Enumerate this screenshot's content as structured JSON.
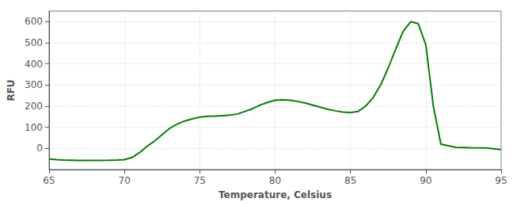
{
  "chart_data": {
    "type": "line",
    "xlabel": "Temperature, Celsius",
    "ylabel": "RFU",
    "xlim": [
      65,
      95
    ],
    "ylim": [
      -100,
      650
    ],
    "xticks": [
      65,
      70,
      75,
      80,
      85,
      90,
      95
    ],
    "yticks": [
      0,
      100,
      200,
      300,
      400,
      500,
      600
    ],
    "color": "#008000",
    "grid": true,
    "x": [
      65,
      65.5,
      66,
      67,
      68,
      69,
      69.5,
      70,
      70.5,
      71,
      71.5,
      72,
      72.5,
      73,
      73.5,
      74,
      74.5,
      75,
      75.5,
      76,
      76.5,
      77,
      77.5,
      78,
      78.5,
      79,
      79.5,
      80,
      80.5,
      81,
      81.5,
      82,
      82.5,
      83,
      83.5,
      84,
      84.5,
      85,
      85.5,
      86,
      86.5,
      87,
      87.5,
      88,
      88.5,
      89,
      89.5,
      90,
      90.5,
      91,
      92,
      93,
      94,
      95
    ],
    "values": [
      -50,
      -53,
      -55,
      -57,
      -57,
      -56,
      -55,
      -53,
      -43,
      -20,
      10,
      35,
      65,
      95,
      115,
      130,
      140,
      148,
      152,
      153,
      155,
      158,
      163,
      175,
      188,
      205,
      218,
      228,
      230,
      228,
      222,
      215,
      205,
      195,
      185,
      178,
      172,
      170,
      175,
      200,
      240,
      300,
      380,
      470,
      555,
      600,
      590,
      490,
      200,
      20,
      5,
      3,
      2,
      -5
    ]
  }
}
